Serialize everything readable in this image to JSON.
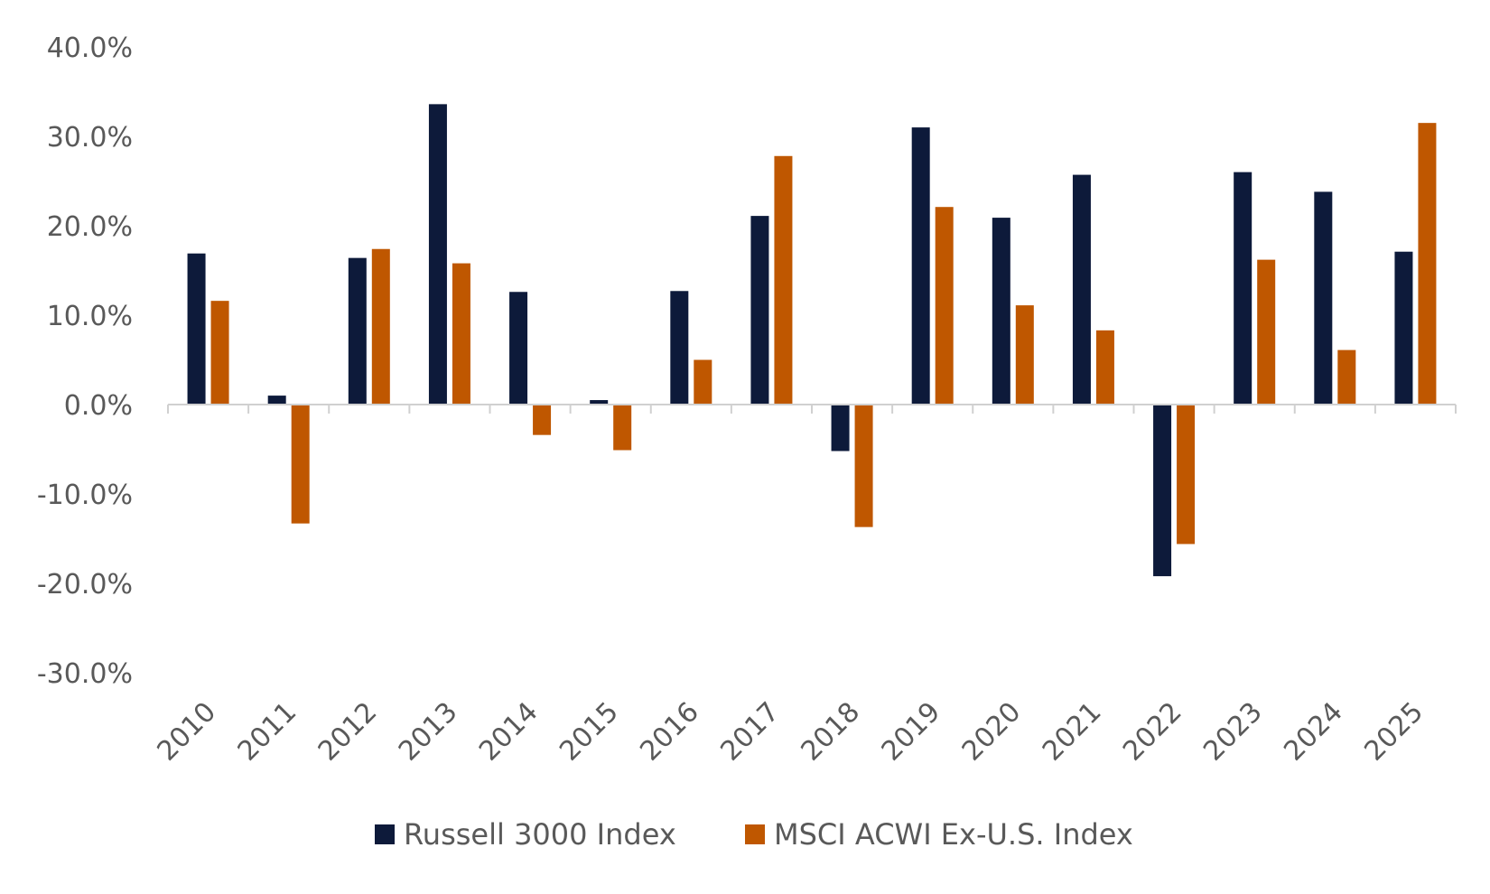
{
  "chart_data": {
    "type": "bar",
    "title": "",
    "xlabel": "",
    "ylabel": "",
    "categories": [
      "2010",
      "2011",
      "2012",
      "2013",
      "2014",
      "2015",
      "2016",
      "2017",
      "2018",
      "2019",
      "2020",
      "2021",
      "2022",
      "2023",
      "2024",
      "2025"
    ],
    "series": [
      {
        "name": "Russell 3000 Index",
        "color": "#0d1a3a",
        "values": [
          16.9,
          1.0,
          16.4,
          33.6,
          12.6,
          0.5,
          12.7,
          21.1,
          -5.2,
          31.0,
          20.9,
          25.7,
          -19.2,
          26.0,
          23.8,
          17.1
        ]
      },
      {
        "name": "MSCI ACWI Ex-U.S. Index",
        "color": "#bf5700",
        "values": [
          11.6,
          -13.3,
          17.4,
          15.8,
          -3.4,
          -5.1,
          5.0,
          27.8,
          -13.7,
          22.1,
          11.1,
          8.3,
          -15.6,
          16.2,
          6.1,
          31.5
        ]
      }
    ],
    "ylim": [
      -30,
      40
    ],
    "y_ticks": [
      "40.0%",
      "30.0%",
      "20.0%",
      "10.0%",
      "0.0%",
      "-10.0%",
      "-20.0%",
      "-30.0%"
    ],
    "grid": false,
    "legend_position": "bottom"
  }
}
